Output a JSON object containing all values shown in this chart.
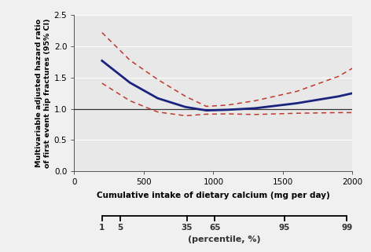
{
  "fig_bg_color": "#f0f0f0",
  "plot_bg_color": "#e8e8e8",
  "main_line_color": "#1a237e",
  "ci_line_color": "#c0392b",
  "ref_line_color": "#333333",
  "ref_line_y": 1.0,
  "xlim": [
    0,
    2000
  ],
  "ylim": [
    0,
    2.5
  ],
  "yticks": [
    0,
    0.5,
    1.0,
    1.5,
    2.0,
    2.5
  ],
  "xticks": [
    0,
    500,
    1000,
    1500,
    2000
  ],
  "ylabel": "Multivariable adjusted hazard ratio\nof first event hip fractures (95% CI)",
  "xlabel": "Cumulative intake of dietary calcium (mg per day)",
  "percentile_x_positions": [
    200,
    330,
    810,
    1010,
    1510,
    1960
  ],
  "percentile_labels": [
    "1",
    "5",
    "35",
    "65",
    "95",
    "99"
  ],
  "percentile_label": "(percentile, %)",
  "main_x": [
    200,
    400,
    600,
    800,
    950,
    1100,
    1300,
    1600,
    1900,
    2000
  ],
  "main_y": [
    1.77,
    1.42,
    1.17,
    1.03,
    0.975,
    0.985,
    1.01,
    1.09,
    1.2,
    1.25
  ],
  "ci_upper_x": [
    200,
    400,
    600,
    800,
    950,
    1100,
    1300,
    1600,
    1900,
    2000
  ],
  "ci_upper_y": [
    2.22,
    1.78,
    1.47,
    1.2,
    1.04,
    1.06,
    1.13,
    1.28,
    1.52,
    1.65
  ],
  "ci_lower_x": [
    200,
    400,
    600,
    800,
    950,
    1100,
    1300,
    1600,
    1900,
    2000
  ],
  "ci_lower_y": [
    1.41,
    1.13,
    0.95,
    0.89,
    0.915,
    0.92,
    0.91,
    0.93,
    0.94,
    0.94
  ]
}
